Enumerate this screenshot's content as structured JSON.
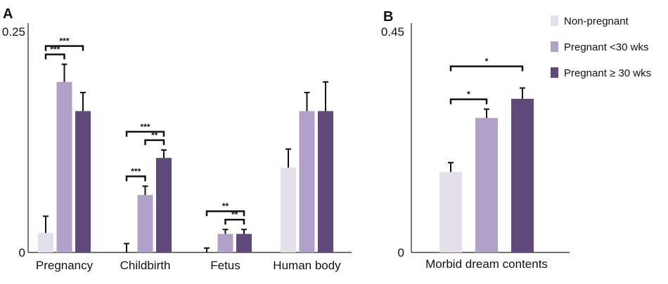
{
  "chart_data": [
    {
      "panel": "A",
      "type": "bar",
      "categories": [
        "Pregnancy",
        "Childbirth",
        "Fetus",
        "Human body"
      ],
      "ylim": [
        0,
        0.25
      ],
      "yticks": [
        "0",
        "0.25"
      ],
      "series": [
        {
          "name": "Non-pregnant",
          "color": "#e5dfec",
          "values": [
            0.022,
            0.0,
            0.0,
            0.096
          ],
          "errors": [
            0.019,
            0.01,
            0.005,
            0.021
          ]
        },
        {
          "name": "Pregnant <30 wks",
          "color": "#b1a0c7",
          "values": [
            0.193,
            0.065,
            0.021,
            0.16
          ],
          "errors": [
            0.02,
            0.01,
            0.005,
            0.021
          ]
        },
        {
          "name": "Pregnant ≥ 30 wks",
          "color": "#5f497a",
          "values": [
            0.16,
            0.107,
            0.021,
            0.16
          ],
          "errors": [
            0.021,
            0.009,
            0.005,
            0.033
          ]
        }
      ],
      "significance": [
        {
          "category": 0,
          "from": 0,
          "to": 1,
          "label": "***"
        },
        {
          "category": 0,
          "from": 0,
          "to": 2,
          "label": "***"
        },
        {
          "category": 1,
          "from": 0,
          "to": 1,
          "label": "***"
        },
        {
          "category": 1,
          "from": 1,
          "to": 2,
          "label": "**"
        },
        {
          "category": 1,
          "from": 0,
          "to": 2,
          "label": "***"
        },
        {
          "category": 2,
          "from": 1,
          "to": 2,
          "label": "**"
        },
        {
          "category": 2,
          "from": 0,
          "to": 2,
          "label": "**"
        }
      ]
    },
    {
      "panel": "B",
      "type": "bar",
      "categories": [
        "Morbid dream contents"
      ],
      "ylim": [
        0,
        0.45
      ],
      "yticks": [
        "0",
        "0.45"
      ],
      "series": [
        {
          "name": "Non-pregnant",
          "color": "#e5dfec",
          "values": [
            0.164
          ],
          "errors": [
            0.019
          ]
        },
        {
          "name": "Pregnant <30 wks",
          "color": "#b1a0c7",
          "values": [
            0.274
          ],
          "errors": [
            0.018
          ]
        },
        {
          "name": "Pregnant ≥ 30 wks",
          "color": "#5f497a",
          "values": [
            0.313
          ],
          "errors": [
            0.022
          ]
        }
      ],
      "significance": [
        {
          "category": 0,
          "from": 0,
          "to": 1,
          "label": "*"
        },
        {
          "category": 0,
          "from": 0,
          "to": 2,
          "label": "*"
        }
      ]
    }
  ],
  "legend": {
    "position": "top-right",
    "entries": [
      {
        "label": "Non-pregnant",
        "color": "#e5dfec"
      },
      {
        "label": "Pregnant <30 wks",
        "color": "#b1a0c7"
      },
      {
        "label": "Pregnant ≥ 30 wks",
        "color": "#5f497a"
      }
    ]
  }
}
